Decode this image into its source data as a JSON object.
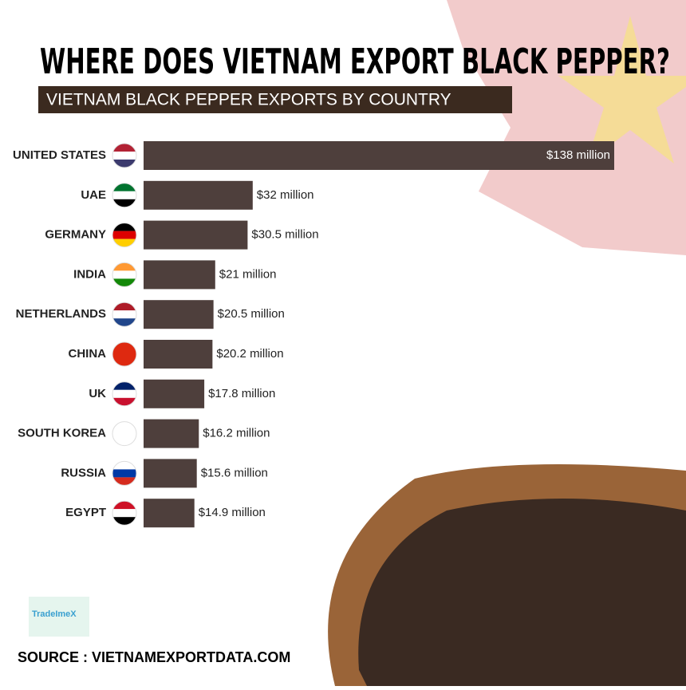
{
  "chart_data": {
    "type": "bar",
    "orientation": "horizontal",
    "title": "WHERE DOES VIETNAM EXPORT BLACK PEPPER?",
    "subtitle": "VIETNAM BLACK PEPPER EXPORTS BY COUNTRY",
    "categories": [
      "UNITED STATES",
      "UAE",
      "GERMANY",
      "INDIA",
      "NETHERLANDS",
      "CHINA",
      "UK",
      "SOUTH KOREA",
      "RUSSIA",
      "EGYPT"
    ],
    "values": [
      138,
      32,
      30.5,
      21,
      20.5,
      20.2,
      17.8,
      16.2,
      15.6,
      14.9
    ],
    "value_labels": [
      "$138 million",
      "$32 million",
      "$30.5 million",
      "$21 million",
      "$20.5 million",
      "$20.2 million",
      "$17.8 million",
      "$16.2 million",
      "$15.6 million",
      "$14.9 million"
    ],
    "color": "#4e3f3c",
    "source": "SOURCE : VIETNAMEXPORTDATA.COM",
    "logo": "TradeImeX"
  }
}
